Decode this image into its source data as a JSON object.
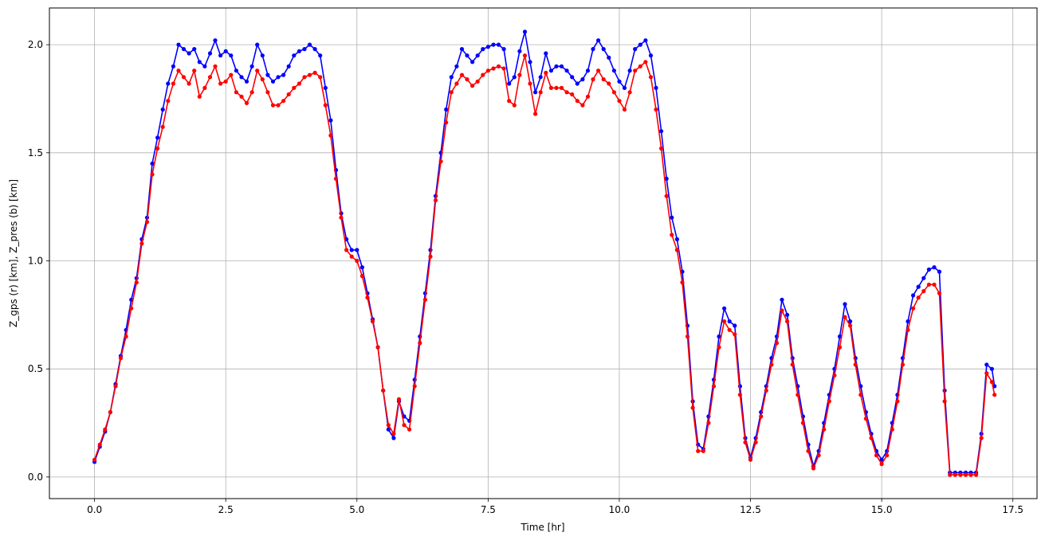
{
  "chart_data": {
    "type": "line",
    "title": "",
    "xlabel": "Time [hr]",
    "ylabel": "Z_gps (r) [km], Z_pres (b) [km]",
    "xlim": [
      -0.86,
      17.96
    ],
    "ylim": [
      -0.1,
      2.17
    ],
    "xticks": [
      0.0,
      2.5,
      5.0,
      7.5,
      10.0,
      12.5,
      15.0,
      17.5
    ],
    "xtick_labels": [
      "0.0",
      "2.5",
      "5.0",
      "7.5",
      "10.0",
      "12.5",
      "15.0",
      "17.5"
    ],
    "yticks": [
      0.0,
      0.5,
      1.0,
      1.5,
      2.0
    ],
    "ytick_labels": [
      "0.0",
      "0.5",
      "1.0",
      "1.5",
      "2.0"
    ],
    "grid": true,
    "legend": "none",
    "series": [
      {
        "color": "#0000ff",
        "x": [
          0.0,
          0.1,
          0.2,
          0.3,
          0.4,
          0.5,
          0.6,
          0.7,
          0.8,
          0.9,
          1.0,
          1.1,
          1.2,
          1.3,
          1.4,
          1.5,
          1.6,
          1.7,
          1.8,
          1.9,
          2.0,
          2.1,
          2.2,
          2.3,
          2.4,
          2.5,
          2.6,
          2.7,
          2.8,
          2.9,
          3.0,
          3.1,
          3.2,
          3.3,
          3.4,
          3.5,
          3.6,
          3.7,
          3.8,
          3.9,
          4.0,
          4.1,
          4.2,
          4.3,
          4.4,
          4.5,
          4.6,
          4.7,
          4.8,
          4.9,
          5.0,
          5.1,
          5.2,
          5.3,
          5.4,
          5.5,
          5.6,
          5.7,
          5.8,
          5.9,
          6.0,
          6.1,
          6.2,
          6.3,
          6.4,
          6.5,
          6.6,
          6.7,
          6.8,
          6.9,
          7.0,
          7.1,
          7.2,
          7.3,
          7.4,
          7.5,
          7.6,
          7.7,
          7.8,
          7.9,
          8.0,
          8.1,
          8.2,
          8.3,
          8.4,
          8.5,
          8.6,
          8.7,
          8.8,
          8.9,
          9.0,
          9.1,
          9.2,
          9.3,
          9.4,
          9.5,
          9.6,
          9.7,
          9.8,
          9.9,
          10.0,
          10.1,
          10.2,
          10.3,
          10.4,
          10.5,
          10.6,
          10.7,
          10.8,
          10.9,
          11.0,
          11.1,
          11.2,
          11.3,
          11.4,
          11.5,
          11.6,
          11.7,
          11.8,
          11.9,
          12.0,
          12.1,
          12.2,
          12.3,
          12.4,
          12.5,
          12.6,
          12.7,
          12.8,
          12.9,
          13.0,
          13.1,
          13.2,
          13.3,
          13.4,
          13.5,
          13.6,
          13.7,
          13.8,
          13.9,
          14.0,
          14.1,
          14.2,
          14.3,
          14.4,
          14.5,
          14.6,
          14.7,
          14.8,
          14.9,
          15.0,
          15.1,
          15.2,
          15.3,
          15.4,
          15.5,
          15.6,
          15.7,
          15.8,
          15.9,
          16.0,
          16.1,
          16.2,
          16.3,
          16.4,
          16.5,
          16.6,
          16.7,
          16.8,
          16.9,
          17.0,
          17.1,
          17.15
        ],
        "y": [
          0.07,
          0.14,
          0.21,
          0.3,
          0.43,
          0.56,
          0.68,
          0.82,
          0.92,
          1.1,
          1.2,
          1.45,
          1.57,
          1.7,
          1.82,
          1.9,
          2.0,
          1.98,
          1.96,
          1.98,
          1.92,
          1.9,
          1.96,
          2.02,
          1.95,
          1.97,
          1.95,
          1.88,
          1.85,
          1.83,
          1.9,
          2.0,
          1.95,
          1.86,
          1.83,
          1.85,
          1.86,
          1.9,
          1.95,
          1.97,
          1.98,
          2.0,
          1.98,
          1.95,
          1.8,
          1.65,
          1.42,
          1.22,
          1.1,
          1.05,
          1.05,
          0.97,
          0.85,
          0.73,
          0.6,
          0.4,
          0.22,
          0.18,
          0.35,
          0.28,
          0.26,
          0.45,
          0.65,
          0.85,
          1.05,
          1.3,
          1.5,
          1.7,
          1.85,
          1.9,
          1.98,
          1.95,
          1.92,
          1.95,
          1.98,
          1.99,
          2.0,
          2.0,
          1.98,
          1.82,
          1.85,
          1.97,
          2.06,
          1.92,
          1.78,
          1.85,
          1.96,
          1.88,
          1.9,
          1.9,
          1.88,
          1.85,
          1.82,
          1.84,
          1.88,
          1.98,
          2.02,
          1.98,
          1.94,
          1.88,
          1.83,
          1.8,
          1.88,
          1.98,
          2.0,
          2.02,
          1.95,
          1.8,
          1.6,
          1.38,
          1.2,
          1.1,
          0.95,
          0.7,
          0.35,
          0.15,
          0.13,
          0.28,
          0.45,
          0.65,
          0.78,
          0.72,
          0.7,
          0.42,
          0.18,
          0.09,
          0.18,
          0.3,
          0.42,
          0.55,
          0.65,
          0.82,
          0.75,
          0.55,
          0.42,
          0.28,
          0.15,
          0.05,
          0.12,
          0.25,
          0.38,
          0.5,
          0.65,
          0.8,
          0.72,
          0.55,
          0.42,
          0.3,
          0.2,
          0.12,
          0.08,
          0.12,
          0.25,
          0.38,
          0.55,
          0.72,
          0.84,
          0.88,
          0.92,
          0.96,
          0.97,
          0.95,
          0.4,
          0.02,
          0.02,
          0.02,
          0.02,
          0.02,
          0.02,
          0.2,
          0.52,
          0.5,
          0.42
        ]
      },
      {
        "color": "#ff0000",
        "x": [
          0.0,
          0.1,
          0.2,
          0.3,
          0.4,
          0.5,
          0.6,
          0.7,
          0.8,
          0.9,
          1.0,
          1.1,
          1.2,
          1.3,
          1.4,
          1.5,
          1.6,
          1.7,
          1.8,
          1.9,
          2.0,
          2.1,
          2.2,
          2.3,
          2.4,
          2.5,
          2.6,
          2.7,
          2.8,
          2.9,
          3.0,
          3.1,
          3.2,
          3.3,
          3.4,
          3.5,
          3.6,
          3.7,
          3.8,
          3.9,
          4.0,
          4.1,
          4.2,
          4.3,
          4.4,
          4.5,
          4.6,
          4.7,
          4.8,
          4.9,
          5.0,
          5.1,
          5.2,
          5.3,
          5.4,
          5.5,
          5.6,
          5.7,
          5.8,
          5.9,
          6.0,
          6.1,
          6.2,
          6.3,
          6.4,
          6.5,
          6.6,
          6.7,
          6.8,
          6.9,
          7.0,
          7.1,
          7.2,
          7.3,
          7.4,
          7.5,
          7.6,
          7.7,
          7.8,
          7.9,
          8.0,
          8.1,
          8.2,
          8.3,
          8.4,
          8.5,
          8.6,
          8.7,
          8.8,
          8.9,
          9.0,
          9.1,
          9.2,
          9.3,
          9.4,
          9.5,
          9.6,
          9.7,
          9.8,
          9.9,
          10.0,
          10.1,
          10.2,
          10.3,
          10.4,
          10.5,
          10.6,
          10.7,
          10.8,
          10.9,
          11.0,
          11.1,
          11.2,
          11.3,
          11.4,
          11.5,
          11.6,
          11.7,
          11.8,
          11.9,
          12.0,
          12.1,
          12.2,
          12.3,
          12.4,
          12.5,
          12.6,
          12.7,
          12.8,
          12.9,
          13.0,
          13.1,
          13.2,
          13.3,
          13.4,
          13.5,
          13.6,
          13.7,
          13.8,
          13.9,
          14.0,
          14.1,
          14.2,
          14.3,
          14.4,
          14.5,
          14.6,
          14.7,
          14.8,
          14.9,
          15.0,
          15.1,
          15.2,
          15.3,
          15.4,
          15.5,
          15.6,
          15.7,
          15.8,
          15.9,
          16.0,
          16.1,
          16.2,
          16.3,
          16.4,
          16.5,
          16.6,
          16.7,
          16.8,
          16.9,
          17.0,
          17.1,
          17.15
        ],
        "y": [
          0.08,
          0.15,
          0.22,
          0.3,
          0.42,
          0.55,
          0.65,
          0.78,
          0.9,
          1.08,
          1.18,
          1.4,
          1.52,
          1.62,
          1.74,
          1.82,
          1.88,
          1.85,
          1.82,
          1.88,
          1.76,
          1.8,
          1.85,
          1.9,
          1.82,
          1.83,
          1.86,
          1.78,
          1.76,
          1.73,
          1.78,
          1.88,
          1.84,
          1.78,
          1.72,
          1.72,
          1.74,
          1.77,
          1.8,
          1.82,
          1.85,
          1.86,
          1.87,
          1.85,
          1.72,
          1.58,
          1.38,
          1.2,
          1.05,
          1.02,
          1.0,
          0.93,
          0.83,
          0.72,
          0.6,
          0.4,
          0.24,
          0.2,
          0.36,
          0.24,
          0.22,
          0.42,
          0.62,
          0.82,
          1.02,
          1.28,
          1.46,
          1.64,
          1.78,
          1.82,
          1.86,
          1.84,
          1.81,
          1.83,
          1.86,
          1.88,
          1.89,
          1.9,
          1.89,
          1.74,
          1.72,
          1.86,
          1.95,
          1.82,
          1.68,
          1.78,
          1.87,
          1.8,
          1.8,
          1.8,
          1.78,
          1.77,
          1.74,
          1.72,
          1.76,
          1.84,
          1.88,
          1.84,
          1.82,
          1.78,
          1.74,
          1.7,
          1.78,
          1.88,
          1.9,
          1.92,
          1.85,
          1.7,
          1.52,
          1.3,
          1.12,
          1.05,
          0.9,
          0.65,
          0.32,
          0.12,
          0.12,
          0.25,
          0.42,
          0.6,
          0.72,
          0.68,
          0.66,
          0.38,
          0.16,
          0.08,
          0.16,
          0.28,
          0.4,
          0.52,
          0.62,
          0.77,
          0.72,
          0.52,
          0.38,
          0.25,
          0.12,
          0.04,
          0.1,
          0.22,
          0.35,
          0.47,
          0.6,
          0.74,
          0.7,
          0.52,
          0.38,
          0.27,
          0.18,
          0.1,
          0.06,
          0.1,
          0.22,
          0.35,
          0.52,
          0.68,
          0.78,
          0.83,
          0.86,
          0.89,
          0.89,
          0.85,
          0.35,
          0.01,
          0.01,
          0.01,
          0.01,
          0.01,
          0.01,
          0.18,
          0.48,
          0.44,
          0.38
        ]
      }
    ]
  }
}
